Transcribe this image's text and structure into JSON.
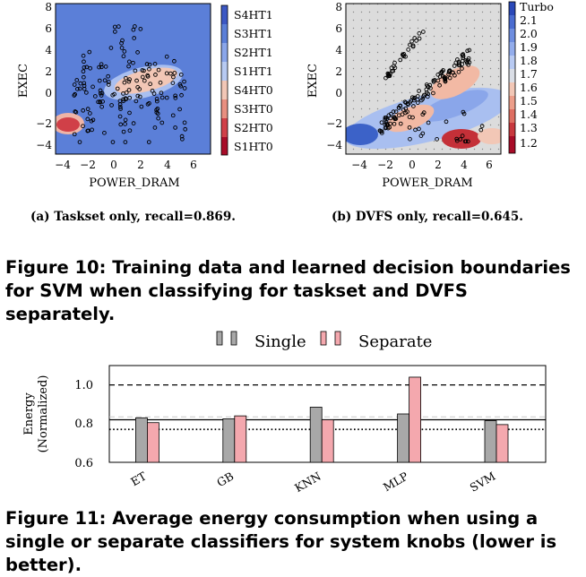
{
  "figure10": {
    "caption": "Figure 10: Training data and learned decision boundaries for SVM when classifying for taskset and DVFS separately.",
    "subplot_a": {
      "caption": "(a) Taskset only, recall=0.869.",
      "xlabel": "POWER_DRAM",
      "ylabel": "EXEC",
      "xticks": [
        "−4",
        "−2",
        "0",
        "2",
        "4",
        "6"
      ],
      "yticks": [
        "8",
        "6",
        "4",
        "2",
        "0",
        "−2",
        "−4"
      ],
      "legend": [
        "S4HT1",
        "S3HT1",
        "S2HT1",
        "S1HT1",
        "S4HT0",
        "S3HT0",
        "S2HT0",
        "S1HT0"
      ],
      "colors": {
        "background": "#5b7fd8",
        "region_light": "#f2c7b6",
        "region_dark": "#d04048"
      }
    },
    "subplot_b": {
      "caption": "(b) DVFS only, recall=0.645.",
      "xlabel": "POWER_DRAM",
      "ylabel": "EXEC",
      "xticks": [
        "−4",
        "−2",
        "0",
        "2",
        "4",
        "6"
      ],
      "yticks": [
        "8",
        "6",
        "4",
        "2",
        "0",
        "−2",
        "−4"
      ],
      "colorbar_labels": [
        "Turbo",
        "2.1",
        "2.0",
        "1.9",
        "1.8",
        "1.7",
        "1.6",
        "1.5",
        "1.4",
        "1.3",
        "1.2"
      ],
      "colors": {
        "background": "#dcdcdc",
        "high": "#3c62c8",
        "low": "#b8202e"
      }
    }
  },
  "figure11": {
    "caption": "Figure 11: Average energy consumption when using a single or separate classifiers for system knobs (lower is better).",
    "chart_data": {
      "type": "bar",
      "categories": [
        "ET",
        "GB",
        "KNN",
        "MLP",
        "SVM"
      ],
      "series": [
        {
          "name": "Single",
          "values": [
            0.83,
            0.825,
            0.885,
            0.85,
            0.815
          ]
        },
        {
          "name": "Separate",
          "values": [
            0.805,
            0.84,
            0.82,
            1.04,
            0.795
          ]
        }
      ],
      "ylabel": "Energy (Normalized)",
      "ylabel_lines": [
        "Energy",
        "(Normalized)"
      ],
      "ylim": [
        0.6,
        1.1
      ],
      "yticks": [
        "1.0",
        "0.8",
        "0.6"
      ],
      "reference_lines": [
        {
          "style": "dashed",
          "value": 1.0
        },
        {
          "style": "solid",
          "value": 0.82
        },
        {
          "style": "dotted",
          "value": 0.77
        }
      ],
      "legend": {
        "placement": "top",
        "entries": [
          "Single",
          "Separate"
        ]
      },
      "colors": {
        "Single": "#a8a8a8",
        "Separate": "#f4a8ae"
      }
    }
  }
}
